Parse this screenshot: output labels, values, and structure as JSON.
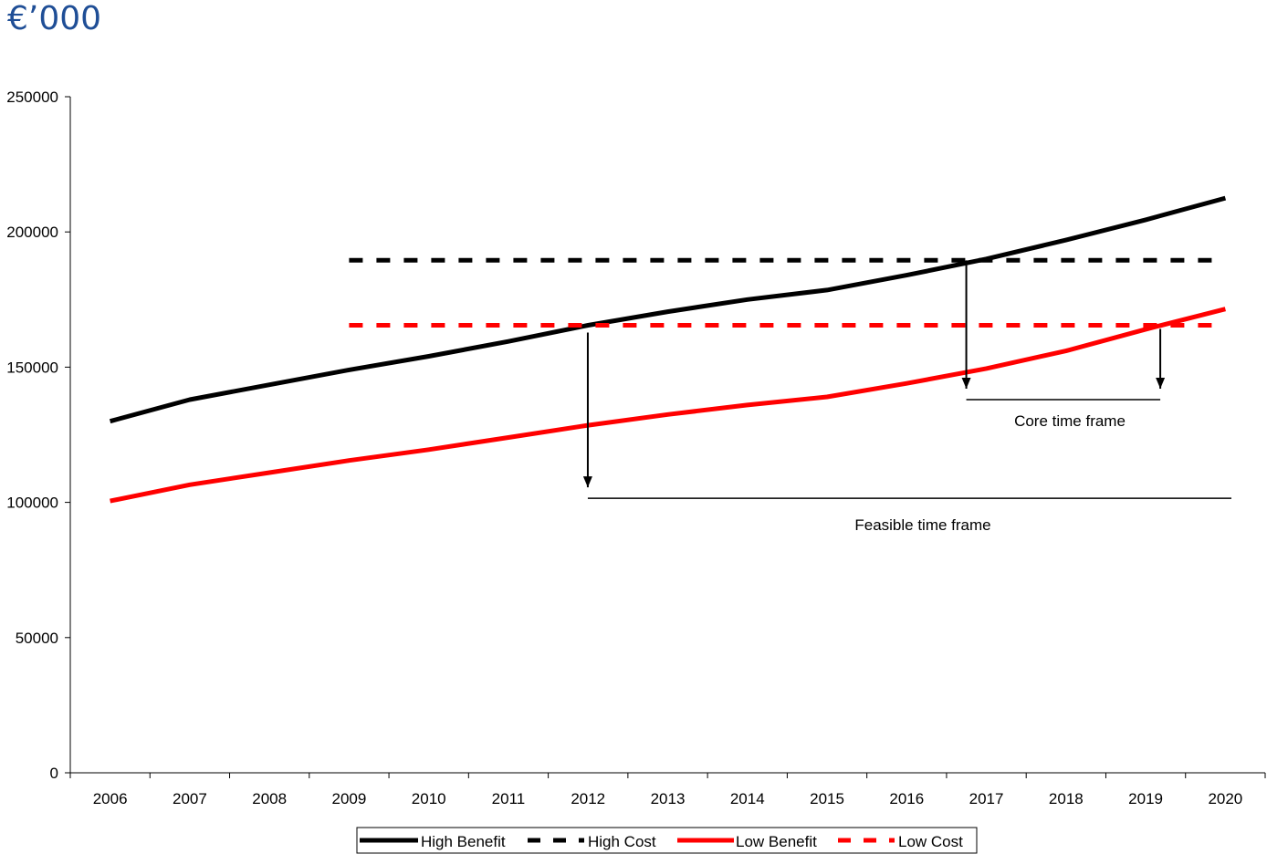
{
  "unit_title": "€’000",
  "annotations": {
    "core": "Core time frame",
    "feasible": "Feasible time frame"
  },
  "chart_data": {
    "type": "line",
    "title": "",
    "xlabel": "",
    "ylabel": "€’000",
    "ylim": [
      0,
      250000
    ],
    "yticks": [
      0,
      50000,
      100000,
      150000,
      200000,
      250000
    ],
    "categories": [
      "2006",
      "2007",
      "2008",
      "2009",
      "2010",
      "2011",
      "2012",
      "2013",
      "2014",
      "2015",
      "2016",
      "2017",
      "2018",
      "2019",
      "2020"
    ],
    "grid": false,
    "legend_position": "bottom",
    "series": [
      {
        "name": "High Benefit",
        "color": "#000000",
        "style": "solid",
        "x": [
          "2006",
          "2007",
          "2008",
          "2009",
          "2010",
          "2011",
          "2012",
          "2013",
          "2014",
          "2015",
          "2016",
          "2017",
          "2018",
          "2019",
          "2020"
        ],
        "values": [
          130000,
          138000,
          143500,
          149000,
          154000,
          159500,
          165500,
          170500,
          175000,
          178500,
          184000,
          190000,
          197000,
          204500,
          212500
        ]
      },
      {
        "name": "High Cost",
        "color": "#000000",
        "style": "dashed",
        "x": [
          "2009",
          "2020"
        ],
        "values": [
          189500,
          189500
        ]
      },
      {
        "name": "Low Benefit",
        "color": "#ff0000",
        "style": "solid",
        "x": [
          "2006",
          "2007",
          "2008",
          "2009",
          "2010",
          "2011",
          "2012",
          "2013",
          "2014",
          "2015",
          "2016",
          "2017",
          "2018",
          "2019",
          "2020"
        ],
        "values": [
          100500,
          106500,
          111000,
          115500,
          119500,
          124000,
          128500,
          132500,
          136000,
          139000,
          144000,
          149500,
          156000,
          164000,
          171500
        ]
      },
      {
        "name": "Low Cost",
        "color": "#ff0000",
        "style": "dashed",
        "x": [
          "2009",
          "2020"
        ],
        "values": [
          165500,
          165500
        ]
      }
    ]
  }
}
